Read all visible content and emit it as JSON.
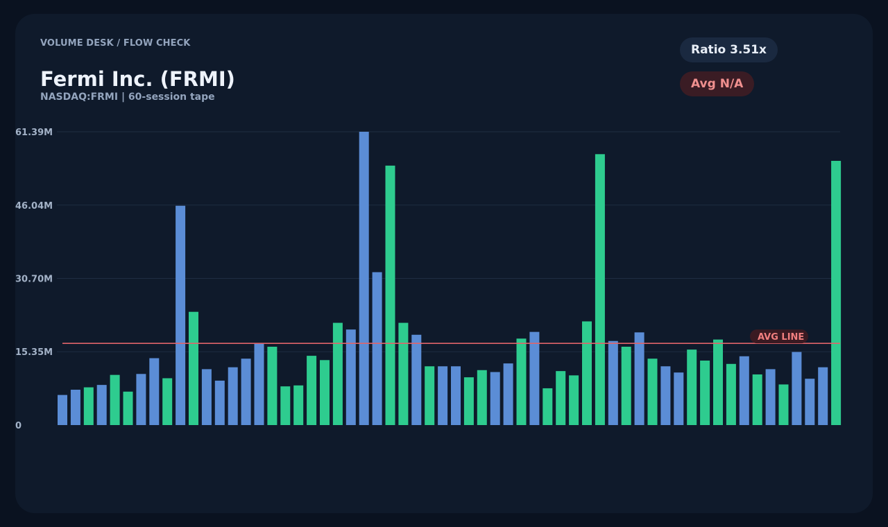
{
  "header": {
    "eyebrow": "VOLUME DESK / FLOW CHECK",
    "title": "Fermi Inc. (FRMI)",
    "subtitle": "NASDAQ:FRMI | 60-session tape"
  },
  "badges": {
    "ratio": "Ratio 3.51x",
    "avg": "Avg N/A"
  },
  "colors": {
    "up": "#2ecc8f",
    "down": "#5b8dd6",
    "avg_line": "#e0646a",
    "grid": "#1f2d42"
  },
  "chart_data": {
    "type": "bar",
    "ylim": [
      0,
      61.39
    ],
    "unit": "M",
    "y_ticks": [
      "0",
      "15.35M",
      "30.70M",
      "46.04M",
      "61.39M"
    ],
    "y_tick_values": [
      0,
      15.35,
      30.7,
      46.04,
      61.39
    ],
    "avg_value": 17.1,
    "avg_label": "AVG LINE",
    "grid": true,
    "values": [
      6.3,
      7.4,
      7.9,
      8.4,
      10.5,
      7.0,
      10.7,
      14.0,
      9.8,
      45.9,
      23.7,
      11.7,
      9.3,
      12.1,
      13.9,
      17.2,
      16.4,
      8.1,
      8.3,
      14.5,
      13.6,
      21.4,
      20.0,
      61.39,
      32.0,
      54.3,
      21.4,
      18.9,
      12.3,
      12.3,
      12.3,
      10.0,
      11.5,
      11.1,
      12.9,
      18.1,
      19.5,
      7.7,
      11.3,
      10.4,
      21.7,
      56.7,
      17.6,
      16.4,
      19.4,
      13.9,
      12.3,
      11.0,
      15.8,
      13.5,
      17.9,
      12.8,
      14.4,
      10.6,
      11.7,
      8.5,
      15.3,
      9.7,
      12.1,
      55.3
    ],
    "directions": [
      "down",
      "down",
      "up",
      "down",
      "up",
      "up",
      "down",
      "down",
      "up",
      "down",
      "up",
      "down",
      "down",
      "down",
      "down",
      "down",
      "up",
      "up",
      "up",
      "up",
      "up",
      "up",
      "down",
      "down",
      "down",
      "up",
      "up",
      "down",
      "up",
      "down",
      "down",
      "up",
      "up",
      "down",
      "down",
      "up",
      "down",
      "up",
      "up",
      "up",
      "up",
      "up",
      "down",
      "up",
      "down",
      "up",
      "down",
      "down",
      "up",
      "up",
      "up",
      "up",
      "down",
      "up",
      "down",
      "up",
      "down",
      "down",
      "down",
      "up"
    ]
  }
}
